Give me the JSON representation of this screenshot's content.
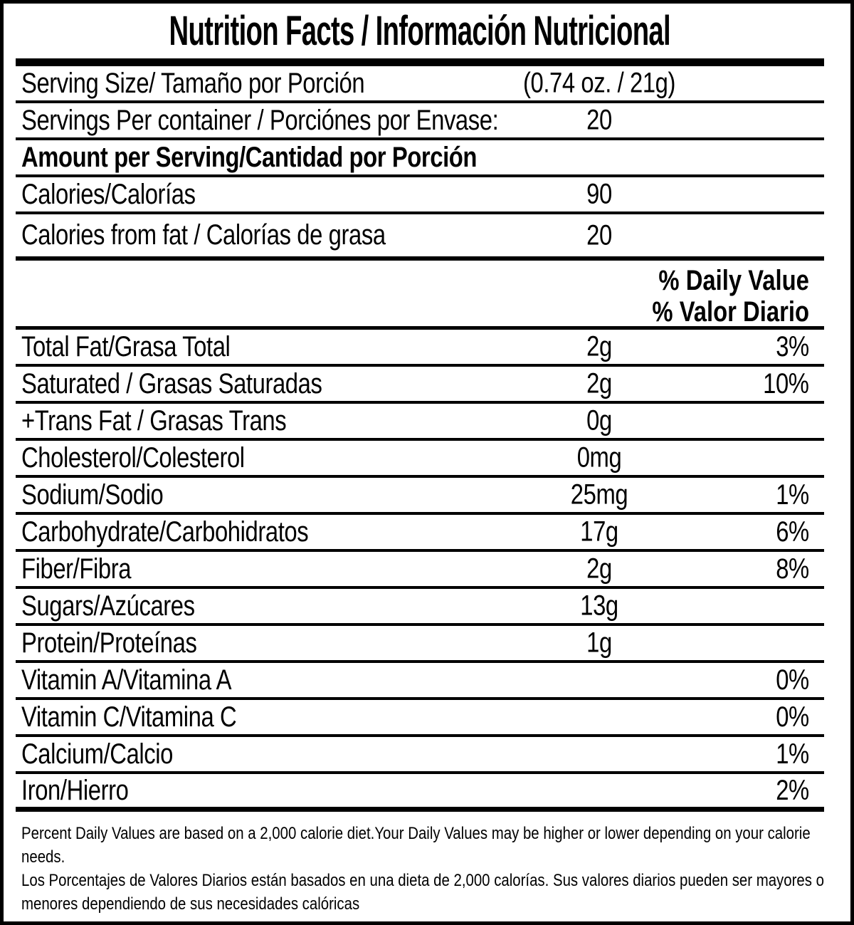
{
  "colors": {
    "text": "#000000",
    "background": "#ffffff"
  },
  "header": {
    "title": "Nutrition Facts / Información Nutricional"
  },
  "serving_rows": [
    {
      "label": "Serving Size/ Tamaño por Porción",
      "amount": "(0.74 oz. / 21g)"
    },
    {
      "label": "Servings Per container / Porciónes por Envase:",
      "amount": "20"
    }
  ],
  "section_header": {
    "label": "Amount per Serving/Cantidad por Porción"
  },
  "calorie_rows": [
    {
      "label": "Calories/Calorías",
      "amount": "90"
    },
    {
      "label": "Calories from fat / Calorías de grasa",
      "amount": "20"
    }
  ],
  "daily_value_header": {
    "en": "% Daily Value",
    "es": "% Valor Diario"
  },
  "nutrient_rows": [
    {
      "label": "Total Fat/Grasa Total",
      "amount": "2g",
      "daily_value": "3%"
    },
    {
      "label": "Saturated / Grasas Saturadas",
      "amount": "2g",
      "daily_value": "10%"
    },
    {
      "label": "+Trans Fat / Grasas Trans",
      "amount": "0g",
      "daily_value": ""
    },
    {
      "label": "Cholesterol/Colesterol",
      "amount": "0mg",
      "daily_value": ""
    },
    {
      "label": "Sodium/Sodio",
      "amount": "25mg",
      "daily_value": "1%"
    },
    {
      "label": "Carbohydrate/Carbohidratos",
      "amount": "17g",
      "daily_value": "6%"
    },
    {
      "label": "Fiber/Fibra",
      "amount": "2g",
      "daily_value": "8%"
    },
    {
      "label": "Sugars/Azúcares",
      "amount": "13g",
      "daily_value": ""
    },
    {
      "label": "Protein/Proteínas",
      "amount": "1g",
      "daily_value": ""
    },
    {
      "label": "Vitamin A/Vitamina A",
      "amount": "",
      "daily_value": "0%"
    },
    {
      "label": "Vitamin C/Vitamina C",
      "amount": "",
      "daily_value": "0%"
    },
    {
      "label": "Calcium/Calcio",
      "amount": "",
      "daily_value": "1%"
    },
    {
      "label": "Iron/Hierro",
      "amount": "",
      "daily_value": "2%"
    }
  ],
  "footnote": {
    "en": "Percent Daily Values are based on a 2,000 calorie diet.Your Daily Values may be higher or lower depending on your calorie needs.",
    "es": "Los Porcentajes de Valores Diarios están basados en una dieta de 2,000 calorías. Sus valores diarios pueden ser mayores o menores dependiendo de sus necesidades calóricas"
  }
}
